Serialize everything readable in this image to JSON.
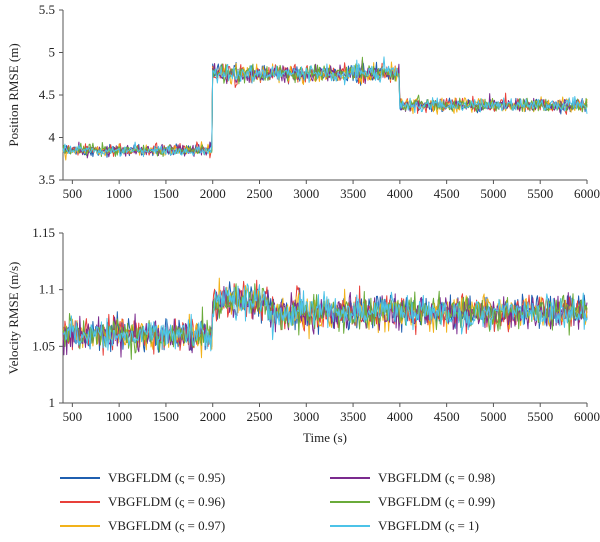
{
  "chart_data": [
    {
      "type": "line",
      "ylabel": "Position RMSE (m)",
      "xlabel": "",
      "xlim": [
        400,
        6000
      ],
      "ylim": [
        3.5,
        5.5
      ],
      "xticks": [
        500,
        1000,
        1500,
        2000,
        2500,
        3000,
        3500,
        4000,
        4500,
        5000,
        5500,
        6000
      ],
      "yticks": [
        3.5,
        4,
        4.5,
        5,
        5.5
      ],
      "ytick_labels": [
        "3.5",
        "4",
        "4.5",
        "5",
        "5.5"
      ],
      "x": [
        400,
        2000,
        2010,
        4000,
        4010,
        6000
      ],
      "series_profile": {
        "segments": [
          {
            "x_start": 400,
            "x_end": 2000,
            "mean": 3.85,
            "noise": 0.06
          },
          {
            "x_start": 2000,
            "x_end": 4000,
            "mean": 4.75,
            "noise": 0.09
          },
          {
            "x_start": 4000,
            "x_end": 6000,
            "mean": 4.38,
            "noise": 0.07
          }
        ]
      }
    },
    {
      "type": "line",
      "ylabel": "Velocity RMSE (m/s)",
      "xlabel": "Time (s)",
      "xlim": [
        400,
        6000
      ],
      "ylim": [
        1.0,
        1.15
      ],
      "xticks": [
        500,
        1000,
        1500,
        2000,
        2500,
        3000,
        3500,
        4000,
        4500,
        5000,
        5500,
        6000
      ],
      "yticks": [
        1.0,
        1.05,
        1.1,
        1.15
      ],
      "ytick_labels": [
        "1",
        "1.05",
        "1.1",
        "1.15"
      ],
      "series_profile": {
        "segments": [
          {
            "x_start": 400,
            "x_end": 2000,
            "mean": 1.06,
            "noise": 0.012
          },
          {
            "x_start": 2000,
            "x_end": 2600,
            "mean": 1.09,
            "noise": 0.013
          },
          {
            "x_start": 2600,
            "x_end": 6000,
            "mean": 1.08,
            "noise": 0.013
          }
        ]
      }
    }
  ],
  "series": [
    {
      "name": "VBGFLDM (ς = 0.95)",
      "color": "#1f5fb0"
    },
    {
      "name": "VBGFLDM (ς = 0.96)",
      "color": "#e8403a"
    },
    {
      "name": "VBGFLDM (ς = 0.97)",
      "color": "#f2b21a"
    },
    {
      "name": "VBGFLDM (ς = 0.98)",
      "color": "#7b2a8e"
    },
    {
      "name": "VBGFLDM (ς = 0.99)",
      "color": "#6aab3a"
    },
    {
      "name": "VBGFLDM (ς = 1)",
      "color": "#4cc3e8"
    }
  ],
  "legend": {
    "placement": "bottom",
    "columns": 2
  }
}
